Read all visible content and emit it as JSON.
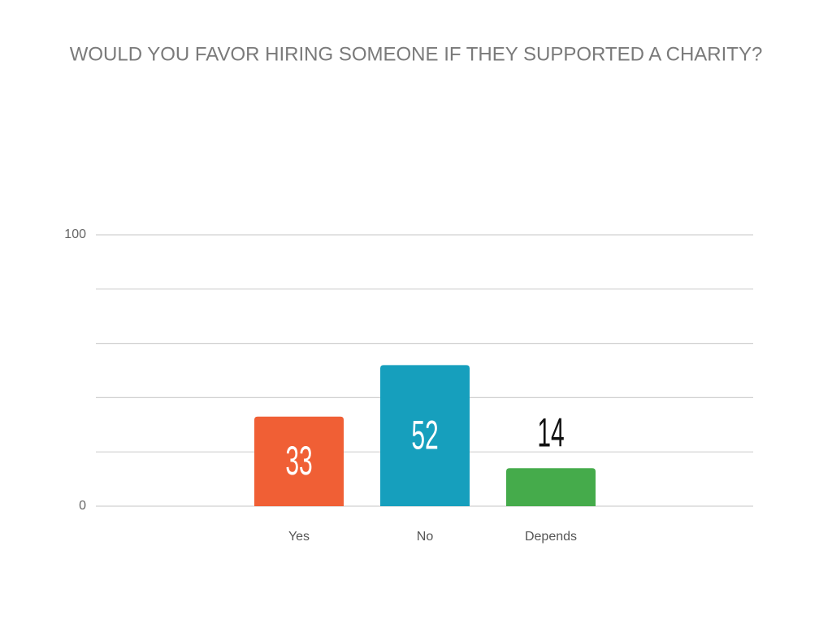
{
  "chart_data": {
    "type": "bar",
    "title": "WOULD YOU FAVOR HIRING SOMEONE IF THEY SUPPORTED A CHARITY?",
    "categories": [
      "Yes",
      "No",
      "Depends"
    ],
    "values": [
      33,
      52,
      14
    ],
    "colors": [
      "#f05f35",
      "#169fbd",
      "#45ab4b"
    ],
    "ylim": [
      0,
      100
    ],
    "yticks": [
      0,
      100
    ],
    "grid_lines": [
      0,
      20,
      40,
      60,
      80,
      100
    ],
    "grid": true
  }
}
